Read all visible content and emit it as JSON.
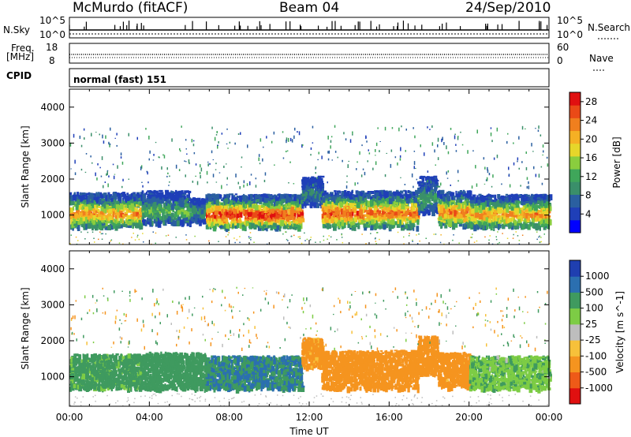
{
  "header": {
    "radar": "McMurdo (fitACF)",
    "beam": "Beam 04",
    "date": "24/Sep/2010"
  },
  "summary": {
    "nsky_label": "N.Sky",
    "nsky_ticks": [
      "10^5",
      "10^0"
    ],
    "nsearch_label": "N.Search",
    "freq_label_line1": "Freq.",
    "freq_label_line2": "[MHz]",
    "freq_ticks": [
      "18",
      "8"
    ],
    "nave_label": "Nave",
    "nave_ticks": [
      "60",
      "0"
    ],
    "cpid_label": "CPID",
    "cpid_value": "normal (fast) 151"
  },
  "colors": {
    "power_scale": [
      "#0000ff",
      "#1f3fb8",
      "#2a5fa0",
      "#3a8f6a",
      "#3fa65a",
      "#8acd3e",
      "#e6d62a",
      "#f5b024",
      "#f07f1e",
      "#ea4a17",
      "#e01010"
    ],
    "velocity_scale": [
      "#e01010",
      "#ee5a18",
      "#f5941f",
      "#f7c13a",
      "#bdbdbd",
      "#7dcc45",
      "#3f9a5f",
      "#2b6fb0",
      "#1f3fb0"
    ]
  },
  "chart_data": [
    {
      "type": "heatmap",
      "title": "",
      "xlabel": "Time UT",
      "ylabel": "Slant Range [km]",
      "xlim": [
        "00:00",
        "24:00"
      ],
      "ylim": [
        180,
        4500
      ],
      "x_ticks": [
        "00:00",
        "04:00",
        "08:00",
        "12:00",
        "16:00",
        "20:00",
        "00:00"
      ],
      "y_ticks": [
        "1000",
        "2000",
        "3000",
        "4000"
      ],
      "colorbar": {
        "label": "Power [dB]",
        "ticks": [
          "4",
          "8",
          "12",
          "16",
          "20",
          "24",
          "28"
        ],
        "range": [
          0,
          30
        ]
      },
      "bands": [
        {
          "t0": 0.0,
          "t1": 3.6,
          "r0": 700,
          "r1": 1650,
          "peak": 24
        },
        {
          "t0": 3.6,
          "t1": 6.0,
          "r0": 800,
          "r1": 1700,
          "peak": 14
        },
        {
          "t0": 6.0,
          "t1": 6.8,
          "r0": 850,
          "r1": 1500,
          "peak": 10
        },
        {
          "t0": 6.8,
          "t1": 11.6,
          "r0": 700,
          "r1": 1600,
          "peak": 30
        },
        {
          "t0": 11.6,
          "t1": 12.6,
          "r0": 1300,
          "r1": 2100,
          "peak": 8
        },
        {
          "t0": 12.6,
          "t1": 14.8,
          "r0": 700,
          "r1": 1700,
          "peak": 28
        },
        {
          "t0": 14.8,
          "t1": 17.4,
          "r0": 700,
          "r1": 1700,
          "peak": 26
        },
        {
          "t0": 17.4,
          "t1": 18.4,
          "r0": 1100,
          "r1": 2100,
          "peak": 12
        },
        {
          "t0": 18.4,
          "t1": 20.0,
          "r0": 750,
          "r1": 1700,
          "peak": 26
        },
        {
          "t0": 20.0,
          "t1": 24.0,
          "r0": 700,
          "r1": 1600,
          "peak": 24
        }
      ]
    },
    {
      "type": "heatmap",
      "title": "",
      "xlabel": "Time UT",
      "ylabel": "Slant Range [km]",
      "xlim": [
        "00:00",
        "24:00"
      ],
      "ylim": [
        180,
        4500
      ],
      "x_ticks": [
        "00:00",
        "04:00",
        "08:00",
        "12:00",
        "16:00",
        "20:00",
        "00:00"
      ],
      "y_ticks": [
        "1000",
        "2000",
        "3000",
        "4000"
      ],
      "colorbar": {
        "label": "Velocity [m s^-1]",
        "ticks": [
          "1000",
          "500",
          "100",
          "25",
          "-25",
          "-100",
          "-500",
          "-1000"
        ],
        "range": [
          -1000,
          1000
        ]
      },
      "bands": [
        {
          "t0": 0.0,
          "t1": 3.6,
          "r0": 700,
          "r1": 1650,
          "vel": 150
        },
        {
          "t0": 3.6,
          "t1": 6.8,
          "r0": 700,
          "r1": 1700,
          "vel": 300
        },
        {
          "t0": 6.8,
          "t1": 11.6,
          "r0": 700,
          "r1": 1600,
          "vel": 500
        },
        {
          "t0": 11.6,
          "t1": 12.6,
          "r0": 1300,
          "r1": 2100,
          "vel": -150
        },
        {
          "t0": 12.6,
          "t1": 17.4,
          "r0": 700,
          "r1": 1750,
          "vel": -300
        },
        {
          "t0": 17.4,
          "t1": 18.4,
          "r0": 1100,
          "r1": 2150,
          "vel": -250
        },
        {
          "t0": 18.4,
          "t1": 20.0,
          "r0": 750,
          "r1": 1700,
          "vel": -200
        },
        {
          "t0": 20.0,
          "t1": 24.0,
          "r0": 700,
          "r1": 1600,
          "vel": 80
        }
      ]
    }
  ]
}
